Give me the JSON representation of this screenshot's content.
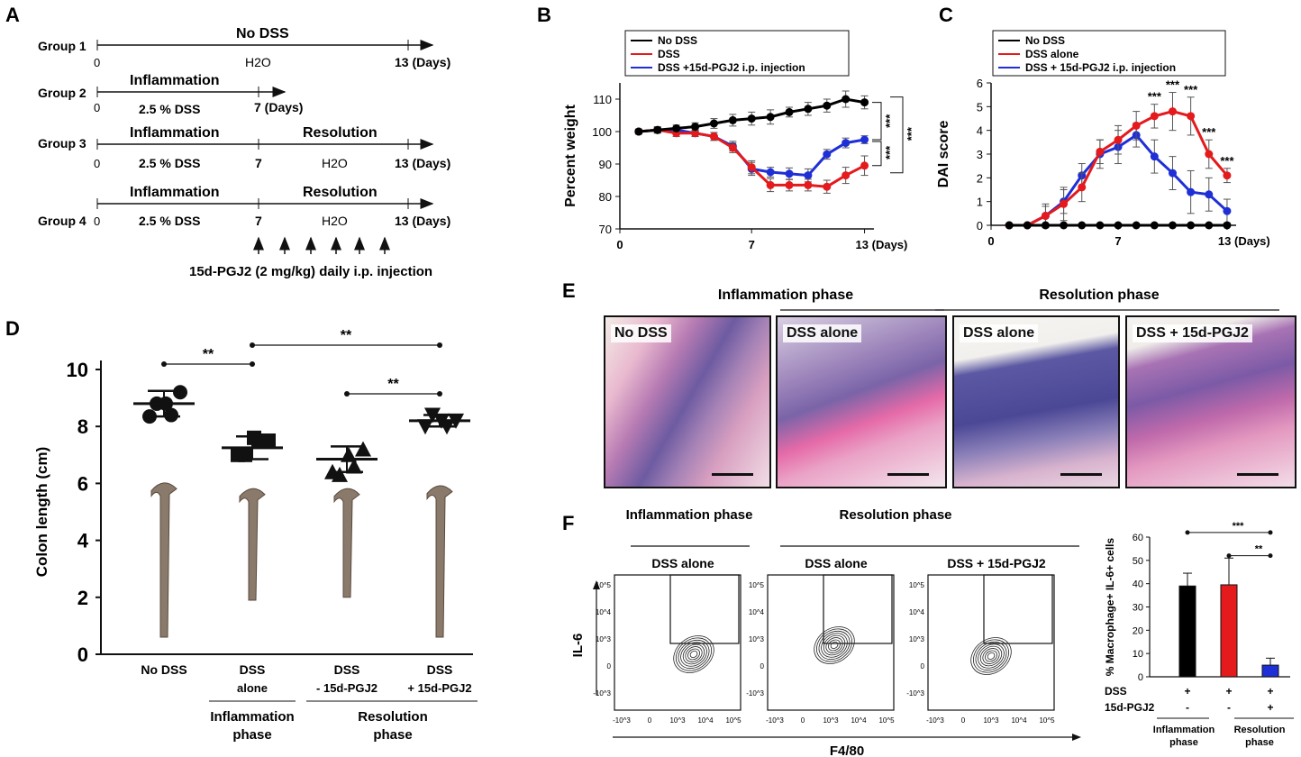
{
  "figure": {
    "panel_labels": {
      "A": "A",
      "B": "B",
      "C": "C",
      "D": "D",
      "E": "E",
      "F": "F"
    },
    "panelA": {
      "groups": [
        {
          "label": "Group 1",
          "top": "No DSS",
          "zero": "0",
          "mid_label": "H2O",
          "end": "13 (Days)"
        },
        {
          "label": "Group 2",
          "top": "Inflammation",
          "zero": "0",
          "sub": "2.5 % DSS",
          "end": "7 (Days)"
        },
        {
          "label": "Group 3",
          "top": "Inflammation",
          "top2": "Resolution",
          "zero": "0",
          "sub": "2.5 % DSS",
          "seven": "7",
          "sub2": "H2O",
          "end": "13 (Days)"
        },
        {
          "label": "Group 4",
          "top": "Inflammation",
          "top2": "Resolution",
          "zero": "0",
          "sub": "2.5 % DSS",
          "seven": "7",
          "sub2": "H2O",
          "end": "13 (Days)"
        }
      ],
      "injection_note": "15d-PGJ2 (2 mg/kg) daily i.p. injection"
    },
    "panelE": {
      "headers": {
        "inflammation": "Inflammation phase",
        "resolution": "Resolution phase"
      },
      "images": [
        "No DSS",
        "DSS alone",
        "DSS alone",
        "DSS + 15d-PGJ2"
      ]
    },
    "panelF": {
      "col_headers": {
        "inflammation": "Inflammation phase",
        "resolution": "Resolution phase"
      },
      "plot_titles": [
        "DSS alone",
        "DSS alone",
        "DSS + 15d-PGJ2"
      ],
      "y_axis": "IL-6",
      "x_axis": "F4/80",
      "ticks_y": [
        "10^5",
        "10^4",
        "10^3",
        "0",
        "-10^3"
      ],
      "ticks_x": [
        "-10^3",
        "0",
        "10^3",
        "10^4",
        "10^5"
      ]
    }
  },
  "colors": {
    "black": "#000000",
    "red": "#e41a1c",
    "blue": "#1f2fd6",
    "he_pink": "#d98bb0",
    "he_purple": "#4a3f8a"
  },
  "chart_data": [
    {
      "id": "B",
      "type": "line",
      "ylabel": "Percent weight",
      "xlabel": "(Days)",
      "xlim": [
        0,
        13.5
      ],
      "ylim": [
        70,
        115
      ],
      "yticks": [
        70,
        80,
        90,
        100,
        110
      ],
      "xticks": [
        {
          "v": 0,
          "t": "0"
        },
        {
          "v": 7,
          "t": "7"
        },
        {
          "v": 13,
          "t": "13 (Days)"
        }
      ],
      "legend": [
        "No DSS",
        "DSS",
        "DSS +15d-PGJ2 i.p. injection"
      ],
      "x": [
        1,
        2,
        3,
        4,
        5,
        6,
        7,
        8,
        9,
        10,
        11,
        12,
        13
      ],
      "series": [
        {
          "name": "No DSS",
          "color": "#000000",
          "values": [
            100,
            100.5,
            101,
            101.5,
            102.5,
            103.5,
            104,
            104.5,
            106,
            107,
            108,
            110,
            109
          ],
          "err": [
            0.8,
            1,
            1,
            1.2,
            1.5,
            1.8,
            2,
            2.2,
            1.5,
            2,
            2,
            2.5,
            2
          ]
        },
        {
          "name": "DSS",
          "color": "#e41a1c",
          "values": [
            100,
            100.5,
            99.5,
            99.5,
            98.5,
            95,
            89,
            83.5,
            83.5,
            83.5,
            83,
            86.5,
            89.5
          ],
          "err": [
            0.5,
            0.8,
            1,
            1,
            1.2,
            1.5,
            2,
            2,
            1.8,
            1.8,
            2,
            2.5,
            3
          ]
        },
        {
          "name": "DSS +15d-PGJ2 i.p. injection",
          "color": "#1f2fd6",
          "values": [
            100,
            100.5,
            100.5,
            99.5,
            98.5,
            95.5,
            88.5,
            87.5,
            87,
            86.5,
            93,
            96.5,
            97.5
          ],
          "err": [
            0.5,
            0.8,
            0.8,
            1,
            1.2,
            1.5,
            2,
            1.5,
            1.8,
            2,
            1.5,
            1.5,
            1.2
          ]
        }
      ],
      "significance": [
        {
          "text": "***",
          "between": "No DSS vs DSS+15d-PGJ2"
        },
        {
          "text": "***",
          "between": "DSS vs DSS+15d-PGJ2"
        },
        {
          "text": "***",
          "between": "No DSS vs DSS"
        }
      ]
    },
    {
      "id": "C",
      "type": "line",
      "ylabel": "DAI score",
      "xlabel": "(Days)",
      "xlim": [
        0,
        13.5
      ],
      "ylim": [
        0,
        6
      ],
      "yticks": [
        0,
        1,
        2,
        3,
        4,
        5,
        6
      ],
      "xticks": [
        {
          "v": 0,
          "t": "0"
        },
        {
          "v": 7,
          "t": "7"
        },
        {
          "v": 13,
          "t": "13 (Days)"
        }
      ],
      "legend": [
        "No DSS",
        "DSS alone",
        "DSS + 15d-PGJ2 i.p. injection"
      ],
      "x": [
        1,
        2,
        3,
        4,
        5,
        6,
        7,
        8,
        9,
        10,
        11,
        12,
        13
      ],
      "series": [
        {
          "name": "No DSS",
          "color": "#000000",
          "values": [
            0,
            0,
            0,
            0,
            0,
            0,
            0,
            0,
            0,
            0,
            0,
            0,
            0
          ],
          "err": [
            0,
            0,
            0,
            0,
            0,
            0,
            0,
            0,
            0,
            0,
            0,
            0,
            0
          ]
        },
        {
          "name": "DSS alone",
          "color": "#e41a1c",
          "values": [
            0,
            0,
            0.4,
            0.9,
            1.6,
            3.1,
            3.6,
            4.2,
            4.6,
            4.8,
            4.6,
            3.0,
            2.1
          ],
          "err": [
            0,
            0,
            0.5,
            0.7,
            0.6,
            0.5,
            0.6,
            0.6,
            0.5,
            0.8,
            0.8,
            0.6,
            0.3
          ]
        },
        {
          "name": "DSS + 15d-PGJ2 i.p. injection",
          "color": "#1f2fd6",
          "values": [
            0,
            0,
            0.4,
            1.0,
            2.1,
            3.0,
            3.3,
            3.8,
            2.9,
            2.2,
            1.4,
            1.3,
            0.6
          ],
          "err": [
            0,
            0,
            0.4,
            0.5,
            0.5,
            0.6,
            0.7,
            0.5,
            0.7,
            0.7,
            0.9,
            0.7,
            0.5
          ]
        }
      ],
      "significance": [
        {
          "x": 9,
          "text": "***"
        },
        {
          "x": 10,
          "text": "***"
        },
        {
          "x": 11,
          "text": "***"
        },
        {
          "x": 12,
          "text": "***"
        },
        {
          "x": 13,
          "text": "***"
        }
      ]
    },
    {
      "id": "D",
      "type": "scatter",
      "ylabel": "Colon length (cm)",
      "ylim": [
        0,
        10
      ],
      "yticks": [
        0,
        2,
        4,
        6,
        8,
        10
      ],
      "categories": [
        "No DSS",
        "DSS alone",
        "DSS - 15d-PGJ2",
        "DSS + 15d-PGJ2"
      ],
      "group_labels": [
        {
          "text": "Inflammation phase"
        },
        {
          "text": "Resolution phase"
        }
      ],
      "groups": [
        {
          "marker": "circle",
          "mean": 8.8,
          "sd": 0.45,
          "points": [
            8.35,
            8.8,
            9.2,
            8.8,
            8.4
          ]
        },
        {
          "marker": "square",
          "mean": 7.25,
          "sd": 0.4,
          "points": [
            7.0,
            7.6,
            7.5,
            7.0,
            7.5
          ]
        },
        {
          "marker": "triangle-up",
          "mean": 6.85,
          "sd": 0.45,
          "points": [
            6.4,
            7.0,
            7.2,
            6.3,
            6.6
          ]
        },
        {
          "marker": "triangle-down",
          "mean": 8.2,
          "sd": 0.2,
          "points": [
            8.0,
            8.2,
            8.2,
            8.4,
            8.0
          ]
        }
      ],
      "significance": [
        "**",
        "**",
        "**"
      ]
    },
    {
      "id": "F",
      "type": "bar",
      "ylabel": "% Macrophage+ IL-6+ cells",
      "ylim": [
        0,
        60
      ],
      "yticks": [
        0,
        10,
        20,
        30,
        40,
        50,
        60
      ],
      "bars": [
        {
          "value": 39,
          "err": 5.5,
          "color": "#000000",
          "dss": "+",
          "pgj": "-"
        },
        {
          "value": 39.5,
          "err": 11.5,
          "color": "#e41a1c",
          "dss": "+",
          "pgj": "-"
        },
        {
          "value": 5,
          "err": 3,
          "color": "#1f2fd6",
          "dss": "+",
          "pgj": "+"
        }
      ],
      "row_labels": [
        "DSS",
        "15d-PGJ2"
      ],
      "group_labels": [
        "Inflammation phase",
        "Resolution phase"
      ],
      "significance": [
        "***",
        "**"
      ]
    }
  ]
}
